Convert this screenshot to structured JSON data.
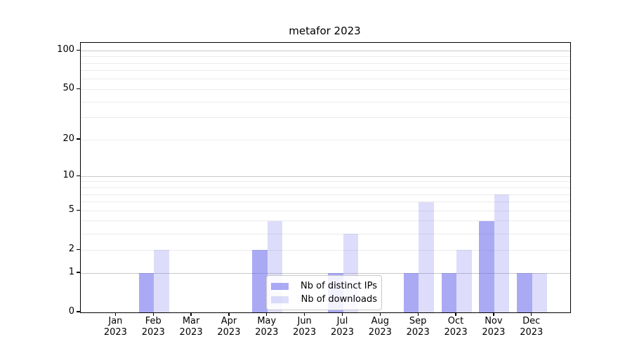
{
  "chart_data": {
    "type": "bar",
    "title": "metafor 2023",
    "categories": [
      "Jan\n2023",
      "Feb\n2023",
      "Mar\n2023",
      "Apr\n2023",
      "May\n2023",
      "Jun\n2023",
      "Jul\n2023",
      "Aug\n2023",
      "Sep\n2023",
      "Oct\n2023",
      "Nov\n2023",
      "Dec\n2023"
    ],
    "series": [
      {
        "name": "Nb of distinct IPs",
        "color": "rgba(100,100,235,0.55)",
        "values": [
          0,
          1,
          0,
          0,
          2,
          0,
          1,
          0,
          1,
          1,
          4,
          1
        ]
      },
      {
        "name": "Nb of downloads",
        "color": "rgba(100,100,235,0.22)",
        "values": [
          0,
          2,
          0,
          0,
          4,
          0,
          3,
          0,
          6,
          2,
          7,
          1
        ]
      }
    ],
    "xlabel": "",
    "ylabel": "",
    "yscale": "log1p",
    "ylim": [
      0,
      115
    ],
    "yticks": [
      0,
      1,
      2,
      5,
      10,
      20,
      50,
      100
    ],
    "grid": {
      "on": true,
      "major_ticks": [
        1,
        10,
        100
      ],
      "minor_ticks": [
        2,
        3,
        4,
        5,
        6,
        7,
        8,
        9,
        20,
        30,
        40,
        50,
        60,
        70,
        80,
        90
      ],
      "major_color": "#c8c8c8",
      "minor_color": "#ebebeb"
    },
    "legend": {
      "position": "lower center"
    }
  }
}
